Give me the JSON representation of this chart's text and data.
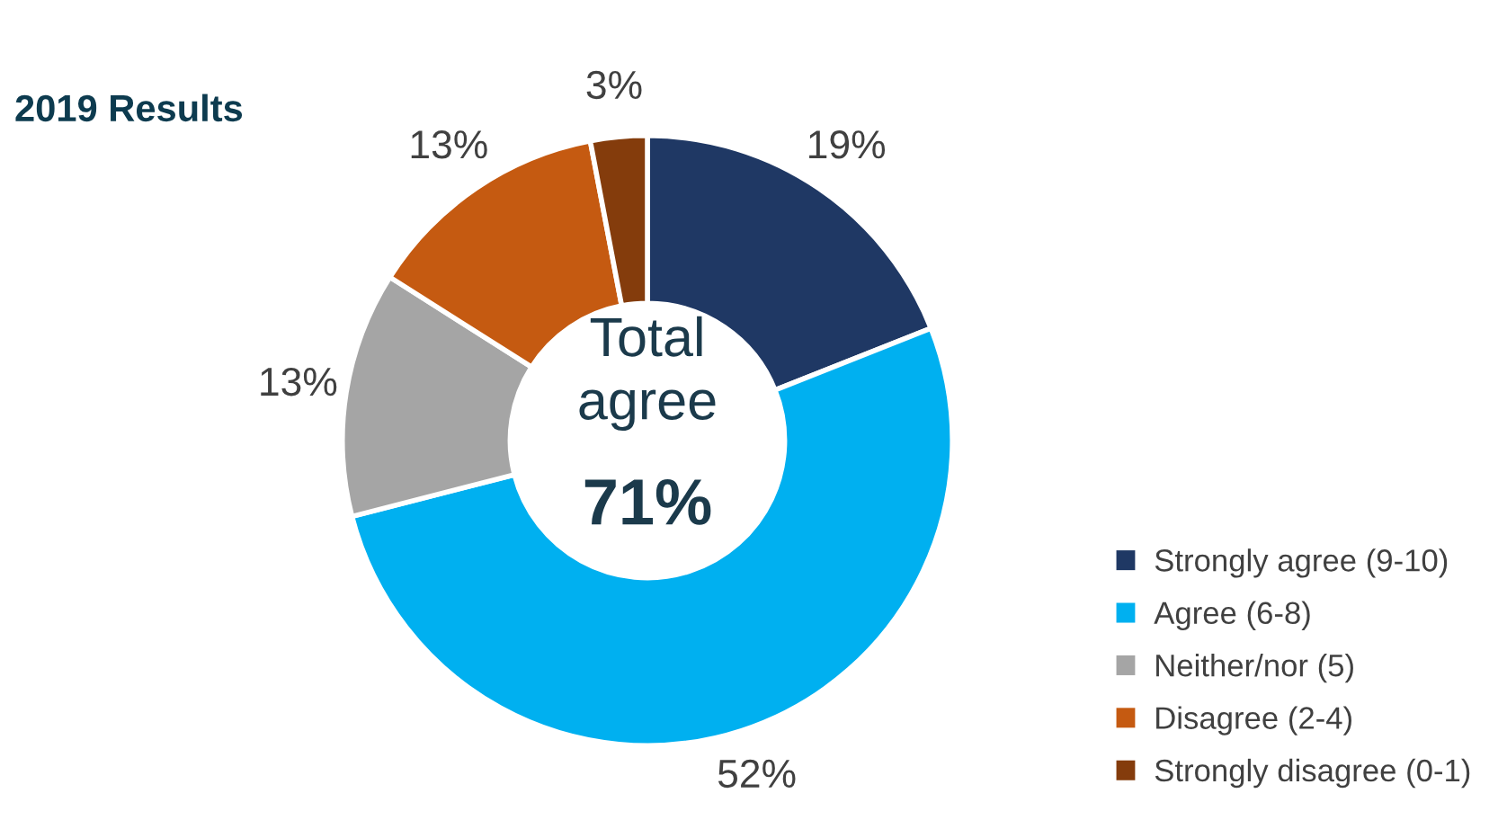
{
  "chart_data": {
    "type": "donut",
    "title": "2019 Results",
    "categories": [
      "Strongly agree (9-10)",
      "Agree (6-8)",
      "Neither/nor (5)",
      "Disagree (2-4)",
      "Strongly disagree (0-1)"
    ],
    "values": [
      19,
      52,
      13,
      13,
      3
    ],
    "colors": [
      "#1f3864",
      "#00b0f0",
      "#a5a5a5",
      "#c55a11",
      "#843c0c"
    ],
    "value_labels": [
      "19%",
      "52%",
      "13%",
      "13%",
      "3%"
    ],
    "annotations": [
      "Total\nagree",
      "71%"
    ],
    "legend": "bottom right"
  }
}
